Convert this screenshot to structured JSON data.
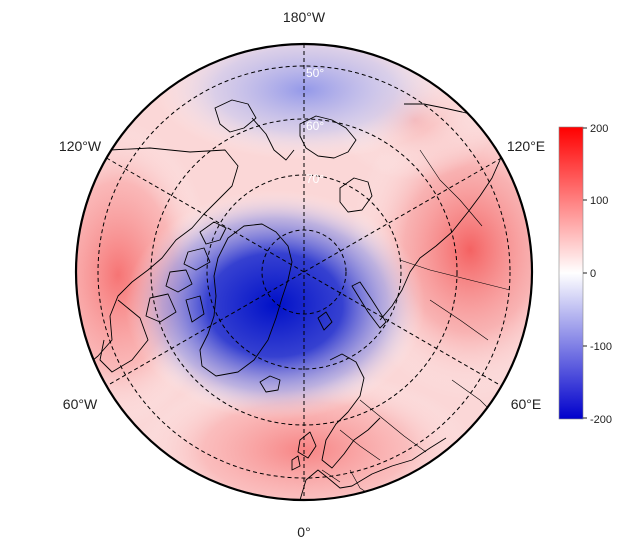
{
  "map": {
    "projection": "north-polar-stereographic",
    "longitude_labels": {
      "top": "180°W",
      "upper_left": "120°W",
      "upper_right": "120°E",
      "lower_left": "60°W",
      "lower_right": "60°E",
      "bottom": "0°"
    },
    "latitude_labels": [
      "50°",
      "60°",
      "70°"
    ],
    "gridlines": "dashed",
    "colors": {
      "negative": "#0000cc",
      "zero": "#ffffff",
      "positive": "#ff0000",
      "coastline": "#000000",
      "grid": "#000000",
      "lat_label": "#ffffff"
    }
  },
  "colorbar": {
    "range": [
      -200,
      200
    ],
    "ticks": [
      "200",
      "100",
      "0",
      "-100",
      "-200"
    ],
    "colors": {
      "top": "#ff0000",
      "middle": "#ffffff",
      "bottom": "#0000cc"
    }
  }
}
